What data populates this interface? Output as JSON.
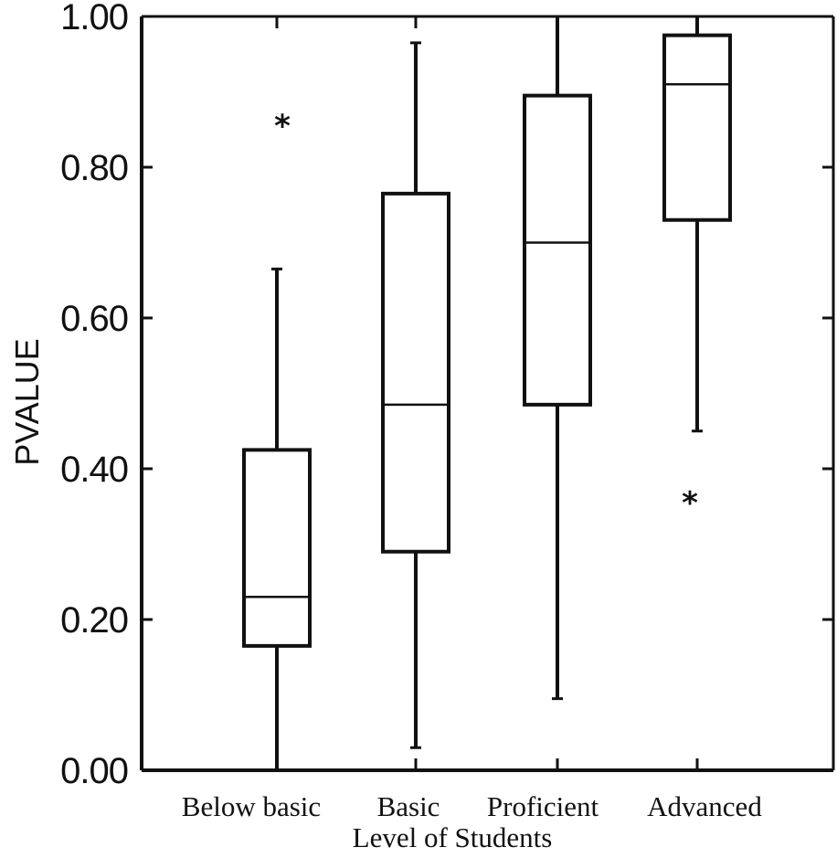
{
  "chart_data": {
    "type": "boxplot",
    "xlabel": "Level of Students",
    "ylabel": "PVALUE",
    "ylim": [
      0.0,
      1.0
    ],
    "yticks": [
      0.0,
      0.2,
      0.4,
      0.6,
      0.8,
      1.0
    ],
    "ytick_labels": [
      "0.00",
      "0.20",
      "0.40",
      "0.60",
      "0.80",
      "1.00"
    ],
    "grid": false,
    "categories": [
      "Below basic",
      "Basic",
      "Proficient",
      "Advanced"
    ],
    "boxes": [
      {
        "category": "Below basic",
        "whisker_low": 0.0,
        "q1": 0.165,
        "median": 0.23,
        "q3": 0.425,
        "whisker_high": 0.665,
        "outliers": [
          0.855
        ]
      },
      {
        "category": "Basic",
        "whisker_low": 0.03,
        "q1": 0.29,
        "median": 0.485,
        "q3": 0.765,
        "whisker_high": 0.965,
        "outliers": []
      },
      {
        "category": "Proficient",
        "whisker_low": 0.095,
        "q1": 0.485,
        "median": 0.7,
        "q3": 0.895,
        "whisker_high": 1.0,
        "outliers": []
      },
      {
        "category": "Advanced",
        "whisker_low": 0.45,
        "q1": 0.73,
        "median": 0.91,
        "q3": 0.975,
        "whisker_high": 1.0,
        "outliers": [
          0.355
        ]
      }
    ]
  },
  "colors": {
    "ink": "#111111",
    "background": "#ffffff"
  }
}
